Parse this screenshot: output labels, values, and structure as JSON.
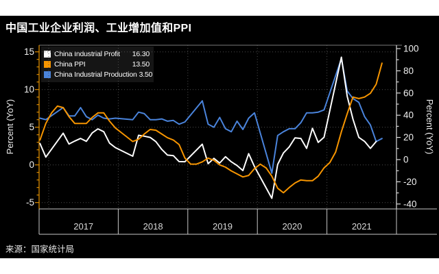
{
  "page": {
    "title": "中国工业企业利润、工业增加值和PPI",
    "source": "来源：国家统计局"
  },
  "colors": {
    "page_bg": "#ffffff",
    "panel_bg": "#000000",
    "title": "#ffffff",
    "grid": "#4e4e4e",
    "frame": "#c9c9c9",
    "plot_top_border": "#7a7a7a",
    "left_axis": "#c87f00",
    "left_tick": "#e08e00",
    "right_axis": "#dcdcdc",
    "tick_label": "#f0f0f0",
    "year_label": "#d9d9d9",
    "legend_bg": "#151515",
    "profit": "#ffffff",
    "ppi": "#f79500",
    "production": "#4a84dc"
  },
  "legend": {
    "items": [
      {
        "label": "China Industrial Profit",
        "value": "16.30",
        "color": "#ffffff"
      },
      {
        "label": "China PPI",
        "value": "13.50",
        "color": "#f79500"
      },
      {
        "label": "China Industrial Production",
        "value": "3.50",
        "color": "#4a84dc"
      }
    ]
  },
  "chart_data": {
    "type": "line",
    "title": "中国工业企业利润、工业增加值和PPI",
    "x_axis": {
      "years": [
        "2017",
        "2018",
        "2019",
        "2020",
        "2021"
      ],
      "unit": "month",
      "start": "2016-11",
      "end": "2021-10"
    },
    "left_axis": {
      "label": "Percent (YoY)",
      "ticks": [
        15,
        10,
        5,
        0,
        -5
      ],
      "min": -5,
      "max": 15
    },
    "right_axis": {
      "label": "Percent (YoY)",
      "ticks": [
        100,
        80,
        60,
        40,
        20,
        0,
        -20,
        -40
      ],
      "min": -40,
      "max": 100
    },
    "grid": true,
    "legend_position": "top-left",
    "series": [
      {
        "name": "China Industrial Profit",
        "axis": "right",
        "color": "#ffffff",
        "latest": 16.3,
        "points": [
          [
            "2016-11",
            14.5
          ],
          [
            "2016-12",
            2.3
          ],
          [
            "2017-03",
            23.8
          ],
          [
            "2017-04",
            14.0
          ],
          [
            "2017-05",
            16.7
          ],
          [
            "2017-06",
            19.1
          ],
          [
            "2017-07",
            16.5
          ],
          [
            "2017-08",
            24.0
          ],
          [
            "2017-09",
            27.7
          ],
          [
            "2017-10",
            25.1
          ],
          [
            "2017-11",
            14.9
          ],
          [
            "2017-12",
            10.8
          ],
          [
            "2018-03",
            3.1
          ],
          [
            "2018-04",
            21.9
          ],
          [
            "2018-05",
            21.1
          ],
          [
            "2018-06",
            20.0
          ],
          [
            "2018-07",
            16.2
          ],
          [
            "2018-08",
            9.2
          ],
          [
            "2018-09",
            4.1
          ],
          [
            "2018-10",
            3.6
          ],
          [
            "2018-11",
            -1.8
          ],
          [
            "2018-12",
            -1.9
          ],
          [
            "2019-03",
            13.9
          ],
          [
            "2019-04",
            -3.7
          ],
          [
            "2019-05",
            1.1
          ],
          [
            "2019-06",
            -3.1
          ],
          [
            "2019-07",
            2.6
          ],
          [
            "2019-08",
            -2.0
          ],
          [
            "2019-09",
            -5.3
          ],
          [
            "2019-10",
            -9.9
          ],
          [
            "2019-11",
            5.4
          ],
          [
            "2019-12",
            -6.3
          ],
          [
            "2020-03",
            -34.9
          ],
          [
            "2020-04",
            -4.3
          ],
          [
            "2020-05",
            6.0
          ],
          [
            "2020-06",
            11.5
          ],
          [
            "2020-07",
            19.6
          ],
          [
            "2020-08",
            19.1
          ],
          [
            "2020-09",
            10.1
          ],
          [
            "2020-10",
            28.2
          ],
          [
            "2020-11",
            15.5
          ],
          [
            "2020-12",
            20.1
          ],
          [
            "2021-03",
            92.3
          ],
          [
            "2021-04",
            57.0
          ],
          [
            "2021-05",
            36.4
          ],
          [
            "2021-06",
            20.0
          ],
          [
            "2021-07",
            16.4
          ],
          [
            "2021-08",
            10.1
          ],
          [
            "2021-09",
            16.3
          ]
        ]
      },
      {
        "name": "China PPI",
        "axis": "left",
        "color": "#f79500",
        "latest": 13.5,
        "points": [
          [
            "2016-11",
            3.3
          ],
          [
            "2016-12",
            5.5
          ],
          [
            "2017-01",
            6.9
          ],
          [
            "2017-02",
            7.8
          ],
          [
            "2017-03",
            7.6
          ],
          [
            "2017-04",
            6.4
          ],
          [
            "2017-05",
            5.5
          ],
          [
            "2017-06",
            5.5
          ],
          [
            "2017-07",
            5.5
          ],
          [
            "2017-08",
            6.3
          ],
          [
            "2017-09",
            6.9
          ],
          [
            "2017-10",
            6.9
          ],
          [
            "2017-11",
            5.8
          ],
          [
            "2017-12",
            4.9
          ],
          [
            "2018-01",
            4.3
          ],
          [
            "2018-02",
            3.7
          ],
          [
            "2018-03",
            3.1
          ],
          [
            "2018-04",
            3.4
          ],
          [
            "2018-05",
            4.1
          ],
          [
            "2018-06",
            4.7
          ],
          [
            "2018-07",
            4.6
          ],
          [
            "2018-08",
            4.1
          ],
          [
            "2018-09",
            3.6
          ],
          [
            "2018-10",
            3.3
          ],
          [
            "2018-11",
            2.7
          ],
          [
            "2018-12",
            0.9
          ],
          [
            "2019-01",
            0.1
          ],
          [
            "2019-02",
            0.1
          ],
          [
            "2019-03",
            0.4
          ],
          [
            "2019-04",
            0.9
          ],
          [
            "2019-05",
            0.6
          ],
          [
            "2019-06",
            0.0
          ],
          [
            "2019-07",
            -0.3
          ],
          [
            "2019-08",
            -0.8
          ],
          [
            "2019-09",
            -1.2
          ],
          [
            "2019-10",
            -1.6
          ],
          [
            "2019-11",
            -1.4
          ],
          [
            "2019-12",
            -0.5
          ],
          [
            "2020-01",
            0.1
          ],
          [
            "2020-02",
            -0.4
          ],
          [
            "2020-03",
            -1.5
          ],
          [
            "2020-04",
            -3.1
          ],
          [
            "2020-05",
            -3.7
          ],
          [
            "2020-06",
            -3.0
          ],
          [
            "2020-07",
            -2.4
          ],
          [
            "2020-08",
            -2.0
          ],
          [
            "2020-09",
            -2.1
          ],
          [
            "2020-10",
            -2.1
          ],
          [
            "2020-11",
            -1.5
          ],
          [
            "2020-12",
            -0.4
          ],
          [
            "2021-01",
            0.3
          ],
          [
            "2021-02",
            1.7
          ],
          [
            "2021-03",
            4.4
          ],
          [
            "2021-04",
            6.8
          ],
          [
            "2021-05",
            9.0
          ],
          [
            "2021-06",
            8.8
          ],
          [
            "2021-07",
            9.0
          ],
          [
            "2021-08",
            9.5
          ],
          [
            "2021-09",
            10.7
          ],
          [
            "2021-10",
            13.5
          ]
        ]
      },
      {
        "name": "China Industrial Production",
        "axis": "left",
        "color": "#4a84dc",
        "latest": 3.5,
        "points": [
          [
            "2016-11",
            6.2
          ],
          [
            "2016-12",
            6.0
          ],
          [
            "2017-03",
            7.6
          ],
          [
            "2017-04",
            6.5
          ],
          [
            "2017-05",
            6.5
          ],
          [
            "2017-06",
            7.6
          ],
          [
            "2017-07",
            6.4
          ],
          [
            "2017-08",
            6.0
          ],
          [
            "2017-09",
            6.6
          ],
          [
            "2017-10",
            6.2
          ],
          [
            "2017-11",
            6.1
          ],
          [
            "2017-12",
            6.2
          ],
          [
            "2018-03",
            6.0
          ],
          [
            "2018-04",
            7.0
          ],
          [
            "2018-05",
            6.8
          ],
          [
            "2018-06",
            6.0
          ],
          [
            "2018-07",
            6.0
          ],
          [
            "2018-08",
            6.1
          ],
          [
            "2018-09",
            5.8
          ],
          [
            "2018-10",
            5.9
          ],
          [
            "2018-11",
            5.4
          ],
          [
            "2018-12",
            5.7
          ],
          [
            "2019-03",
            8.5
          ],
          [
            "2019-04",
            5.4
          ],
          [
            "2019-05",
            5.0
          ],
          [
            "2019-06",
            6.3
          ],
          [
            "2019-07",
            4.8
          ],
          [
            "2019-08",
            4.4
          ],
          [
            "2019-09",
            5.8
          ],
          [
            "2019-10",
            4.7
          ],
          [
            "2019-11",
            6.2
          ],
          [
            "2019-12",
            6.9
          ],
          [
            "2020-03",
            -1.1
          ],
          [
            "2020-04",
            3.9
          ],
          [
            "2020-05",
            4.4
          ],
          [
            "2020-06",
            4.8
          ],
          [
            "2020-07",
            4.8
          ],
          [
            "2020-08",
            5.6
          ],
          [
            "2020-09",
            6.9
          ],
          [
            "2020-10",
            6.9
          ],
          [
            "2020-11",
            7.0
          ],
          [
            "2020-12",
            7.3
          ],
          [
            "2021-03",
            14.1
          ],
          [
            "2021-04",
            9.8
          ],
          [
            "2021-05",
            8.8
          ],
          [
            "2021-06",
            8.3
          ],
          [
            "2021-07",
            6.4
          ],
          [
            "2021-08",
            5.3
          ],
          [
            "2021-09",
            3.1
          ],
          [
            "2021-10",
            3.5
          ]
        ]
      }
    ]
  }
}
